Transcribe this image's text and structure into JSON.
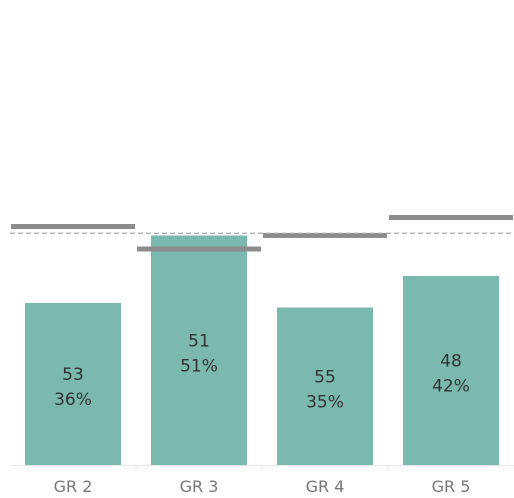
{
  "chart_data": {
    "type": "bar",
    "title": "",
    "xlabel": "",
    "ylabel": "",
    "categories": [
      "GR 2",
      "GR 3",
      "GR 4",
      "GR 5"
    ],
    "values": [
      36,
      51,
      35,
      42
    ],
    "value_unit": "%",
    "counts": [
      53,
      51,
      55,
      48
    ],
    "data_labels": [
      [
        "53",
        "36%"
      ],
      [
        "51",
        "51%"
      ],
      [
        "55",
        "35%"
      ],
      [
        "48",
        "42%"
      ]
    ],
    "reference_marks": [
      {
        "type": "per-category-target",
        "values": [
          53,
          48,
          51,
          55
        ]
      },
      {
        "type": "overall-reference-line",
        "value": 51.5,
        "style": "dashed"
      }
    ],
    "ylim": [
      0,
      100
    ],
    "grid": false,
    "legend": "none",
    "colors": {
      "bar": "#7ab8b0",
      "target": "#8c8c8c",
      "reference": "#a8a8a8",
      "axis": "#e6e6e6",
      "label": "#333333",
      "tick": "#777777"
    }
  }
}
